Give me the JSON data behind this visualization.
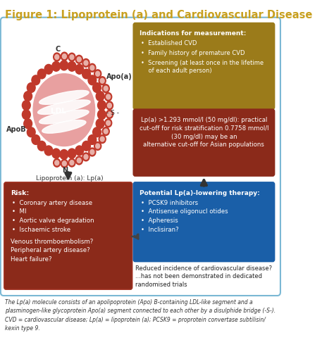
{
  "title": "Figure 1: Lipoprotein (a) and Cardiovascular Disease",
  "title_color": "#C8A020",
  "title_fontsize": 10.5,
  "background_color": "#ffffff",
  "outer_box_color": "#7ab8d4",
  "indications_box_color": "#9B7B1A",
  "indications_title": "Indications for measurement:",
  "indications_bullets": [
    "Established CVD",
    "Family history of premature CVD",
    "Screening (at least once in the lifetime\n    of each adult person)"
  ],
  "cutoff_box_color": "#8B2A1A",
  "cutoff_text": "Lp(a) >1.293 mmol/l (50 mg/dl): practical\ncut-off for risk stratification 0.7758 mmol/l\n(30 mg/dl) may be an\nalternative cut-off for Asian populations",
  "risk_box_color": "#8B2A1A",
  "risk_title": "Risk:",
  "risk_bullets": [
    "Coronary artery disease",
    "MI",
    "Aortic valve degradation",
    "Ischaemic stroke"
  ],
  "risk_extra": "Venous thromboembolism?\nPeripheral artery disease?\nHeart failure?",
  "therapy_box_color": "#1a5fa8",
  "therapy_title": "Potential Lp(a)-lowering therapy:",
  "therapy_bullets": [
    "PCSK9 inhibitors",
    "Antisense oligonucl otides",
    "Apheresis",
    "Inclisiran?"
  ],
  "reduced_text": "Reduced incidence of cardiovascular disease?\n...has not been demonstrated in dedicated\nrandomised trials",
  "caption": "The Lp(a) molecule consists of an apolipoprotein (Apo) B-containing LDL-like segment and a\nplasminogen-like glycoprotein Apo(a) segment connected to each other by a disulphide bridge (-S-).\nCVD = cardiovascular disease; Lp(a) = lipoprotein (a); PCSK9 = proprotein convertase subtilisin/\nkexin type 9.",
  "ldl_ball_light": "#e8a0a0",
  "ldl_ball_dark": "#c0392b",
  "apo_chain_color": "#c0392b",
  "lp_label": "Lipoprotein (a): Lp(a)",
  "figwidth": 4.74,
  "figheight": 4.83,
  "dpi": 100
}
